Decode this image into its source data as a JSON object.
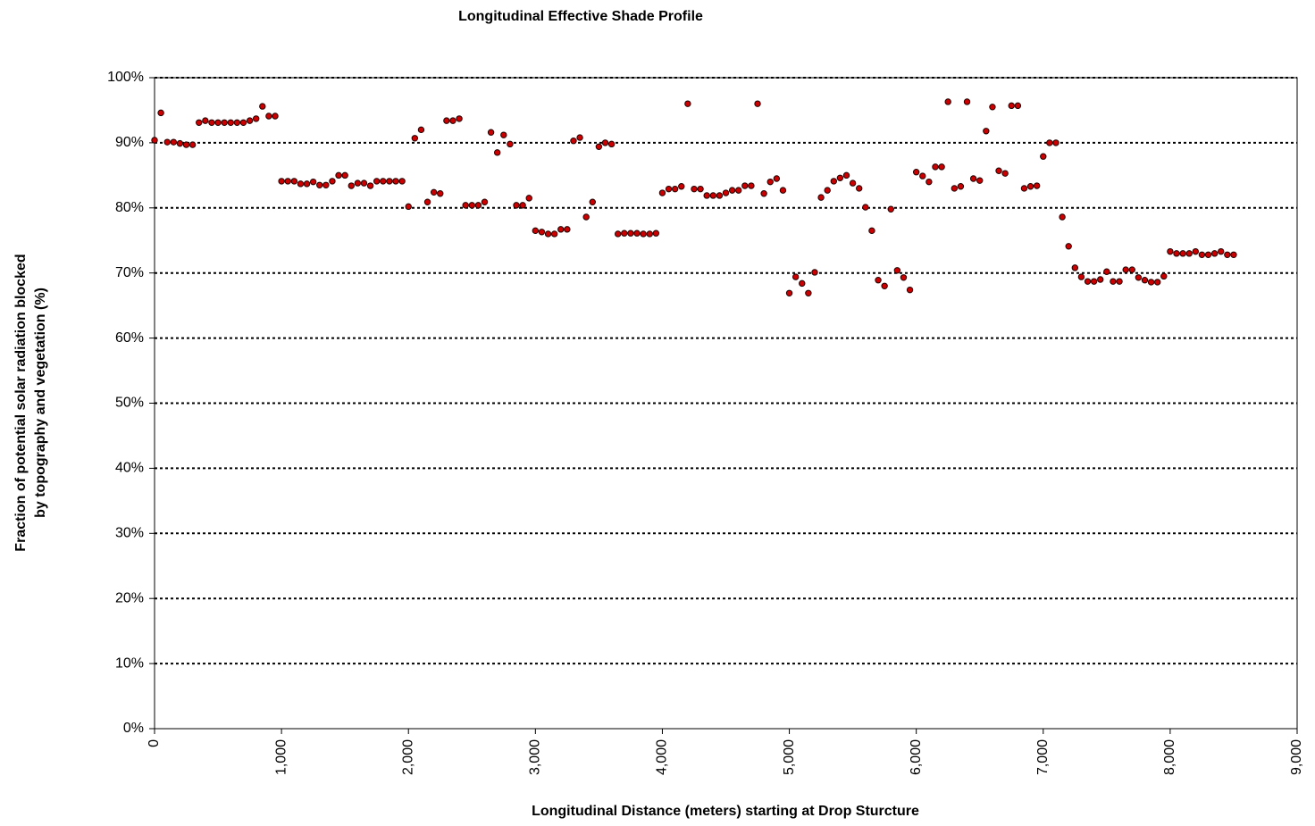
{
  "chart_data": {
    "type": "scatter",
    "title": "Longitudinal Effective Shade Profile",
    "x_label": "Longitudinal Distance (meters) starting at Drop Sturcture",
    "y_label": [
      "Fraction of potential solar radiation blocked",
      "by topography and vegetation (%)"
    ],
    "color": "#cc0000",
    "grid": true,
    "xlim": [
      0,
      9000
    ],
    "ylim": [
      0,
      100
    ],
    "xticks": [
      0,
      {
        "value": 1000,
        "label": "1,000"
      },
      {
        "value": 2000,
        "label": "2,000"
      },
      {
        "value": 3000,
        "label": "3,000"
      },
      {
        "value": 4000,
        "label": "4,000"
      },
      {
        "value": 5000,
        "label": "5,000"
      },
      {
        "value": 6000,
        "label": "6,000"
      },
      {
        "value": 7000,
        "label": "7,000"
      },
      {
        "value": 8000,
        "label": "8,000"
      },
      {
        "value": 9000,
        "label": "9,000"
      }
    ],
    "yticks": [
      {
        "value": 0,
        "label": "0%"
      },
      {
        "value": 10,
        "label": "10%"
      },
      {
        "value": 20,
        "label": "20%"
      },
      {
        "value": 30,
        "label": "30%"
      },
      {
        "value": 40,
        "label": "40%"
      },
      {
        "value": 50,
        "label": "50%"
      },
      {
        "value": 60,
        "label": "60%"
      },
      {
        "value": 70,
        "label": "70%"
      },
      {
        "value": 80,
        "label": "80%"
      },
      {
        "value": 90,
        "label": "90%"
      },
      {
        "value": 100,
        "label": "100%"
      }
    ],
    "x": [
      0,
      50,
      100,
      150,
      200,
      250,
      300,
      350,
      400,
      450,
      500,
      550,
      600,
      650,
      700,
      750,
      800,
      850,
      900,
      950,
      1000,
      1050,
      1100,
      1150,
      1200,
      1250,
      1300,
      1350,
      1400,
      1450,
      1500,
      1550,
      1600,
      1650,
      1700,
      1750,
      1800,
      1850,
      1900,
      1950,
      2000,
      2050,
      2100,
      2150,
      2200,
      2250,
      2300,
      2350,
      2400,
      2450,
      2500,
      2550,
      2600,
      2650,
      2700,
      2750,
      2800,
      2850,
      2900,
      2950,
      3000,
      3050,
      3100,
      3150,
      3200,
      3250,
      3300,
      3350,
      3400,
      3450,
      3500,
      3550,
      3600,
      3650,
      3700,
      3750,
      3800,
      3850,
      3900,
      3950,
      4000,
      4050,
      4100,
      4150,
      4200,
      4250,
      4300,
      4350,
      4400,
      4450,
      4500,
      4550,
      4600,
      4650,
      4700,
      4750,
      4800,
      4850,
      4900,
      4950,
      5000,
      5050,
      5100,
      5150,
      5200,
      5250,
      5300,
      5350,
      5400,
      5450,
      5500,
      5550,
      5600,
      5650,
      5700,
      5750,
      5800,
      5850,
      5900,
      5950,
      6000,
      6050,
      6100,
      6150,
      6200,
      6250,
      6300,
      6350,
      6400,
      6450,
      6500,
      6550,
      6600,
      6650,
      6700,
      6750,
      6800,
      6850,
      6900,
      6950,
      7000,
      7050,
      7100,
      7150,
      7200,
      7250,
      7300,
      7350,
      7400,
      7450,
      7500,
      7550,
      7600,
      7650,
      7700,
      7750,
      7800,
      7850,
      7900,
      7950,
      8000,
      8050,
      8100,
      8150,
      8200,
      8250,
      8300,
      8350,
      8400,
      8450,
      8500
    ],
    "values": [
      90.4,
      94.6,
      90.1,
      90.1,
      89.9,
      89.7,
      89.7,
      93.1,
      93.4,
      93.1,
      93.1,
      93.1,
      93.1,
      93.1,
      93.1,
      93.4,
      93.7,
      95.6,
      94.1,
      94.1,
      84.1,
      84.1,
      84.1,
      83.7,
      83.7,
      84.0,
      83.5,
      83.5,
      84.1,
      85.0,
      85.0,
      83.4,
      83.8,
      83.8,
      83.4,
      84.1,
      84.1,
      84.1,
      84.1,
      84.1,
      80.2,
      90.7,
      92.0,
      80.9,
      82.4,
      82.2,
      93.4,
      93.4,
      93.7,
      80.4,
      80.4,
      80.4,
      80.9,
      91.6,
      88.5,
      91.2,
      89.8,
      80.4,
      80.4,
      81.5,
      76.5,
      76.3,
      76.0,
      76.0,
      76.7,
      76.7,
      90.3,
      90.8,
      78.6,
      80.9,
      89.4,
      90.0,
      89.8,
      76.0,
      76.1,
      76.1,
      76.1,
      76.0,
      76.0,
      76.1,
      82.3,
      82.9,
      82.9,
      83.3,
      96.0,
      82.9,
      82.9,
      81.9,
      81.9,
      81.9,
      82.3,
      82.7,
      82.7,
      83.4,
      83.4,
      96.0,
      82.2,
      84.0,
      84.5,
      82.7,
      66.9,
      69.4,
      68.4,
      66.9,
      70.1,
      81.6,
      82.7,
      84.1,
      84.6,
      85.0,
      83.8,
      83.0,
      80.1,
      76.5,
      68.9,
      68.0,
      79.8,
      70.4,
      69.3,
      67.4,
      85.5,
      84.9,
      84.0,
      86.3,
      86.3,
      96.3,
      83.0,
      83.3,
      96.3,
      84.5,
      84.2,
      91.8,
      95.5,
      85.7,
      85.3,
      95.7,
      95.7,
      83.0,
      83.3,
      83.4,
      87.9,
      90.0,
      90.0,
      78.6,
      74.1,
      70.8,
      69.4,
      68.7,
      68.7,
      69.0,
      70.2,
      68.7,
      68.7,
      70.5,
      70.5,
      69.3,
      68.9,
      68.6,
      68.6,
      69.5,
      73.3,
      73.0,
      73.0,
      73.0,
      73.3,
      72.8,
      72.8,
      73.0,
      73.3,
      72.8,
      72.8
    ]
  }
}
